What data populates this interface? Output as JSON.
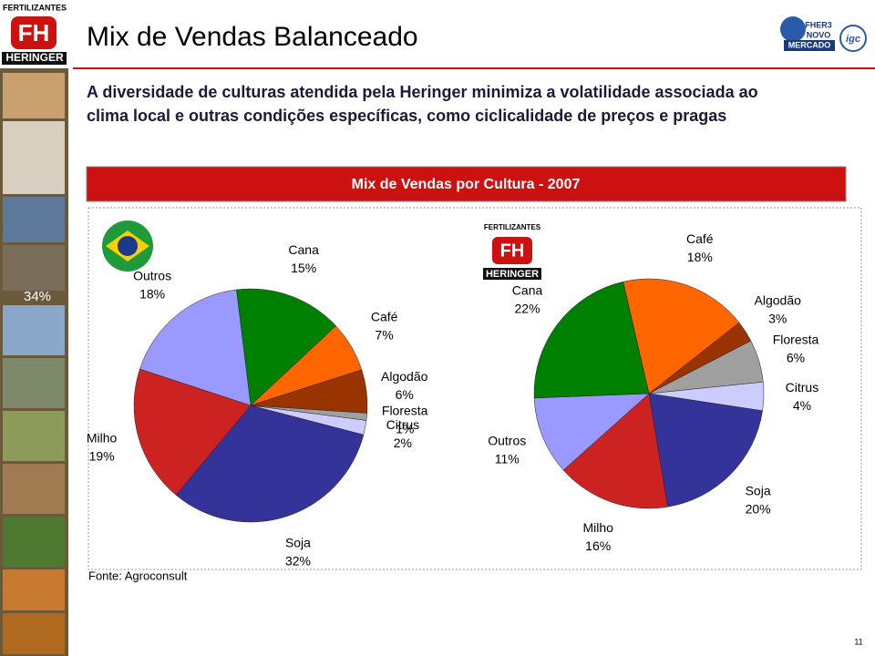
{
  "logo": {
    "top": "FERTILIZANTES",
    "bottom": "HERINGER"
  },
  "partner_logos": [
    "FHER3",
    "NOVO",
    "MERCADO",
    "igc"
  ],
  "header": {
    "title": "Mix de Vendas Balanceado",
    "subtitle": "A diversidade de culturas atendida pela Heringer minimiza a volatilidade associada ao clima local e outras condições específicas, como ciclicalidade de preços e pragas"
  },
  "sidebar_label": "34%",
  "banner": "Mix de Vendas por Cultura - 2007",
  "chart_data": [
    {
      "type": "pie",
      "categories": [
        "Cana",
        "Café",
        "Algodão",
        "Floresta",
        "Citrus",
        "Soja",
        "Milho",
        "Outros"
      ],
      "values": [
        15,
        7,
        6,
        1,
        2,
        32,
        19,
        18
      ],
      "value_labels": [
        "15%",
        "7%",
        "6%",
        "1%",
        "2%",
        "32%",
        "19%",
        "18%"
      ],
      "colors": [
        "#008000",
        "#ff6600",
        "#993300",
        "#a0a0a0",
        "#ccccff",
        "#333399",
        "#cc2222",
        "#9999ff"
      ]
    },
    {
      "type": "pie",
      "categories": [
        "Café",
        "Algodão",
        "Floresta",
        "Citrus",
        "Soja",
        "Milho",
        "Outros",
        "Cana"
      ],
      "values": [
        18,
        3,
        6,
        4,
        20,
        16,
        11,
        22
      ],
      "value_labels": [
        "18%",
        "3%",
        "6%",
        "4%",
        "20%",
        "16%",
        "11%",
        "22%"
      ],
      "colors": [
        "#ff6600",
        "#993300",
        "#a0a0a0",
        "#ccccff",
        "#333399",
        "#cc2222",
        "#9999ff",
        "#008000"
      ]
    }
  ],
  "source": "Fonte: Agroconsult",
  "page_number": "11"
}
